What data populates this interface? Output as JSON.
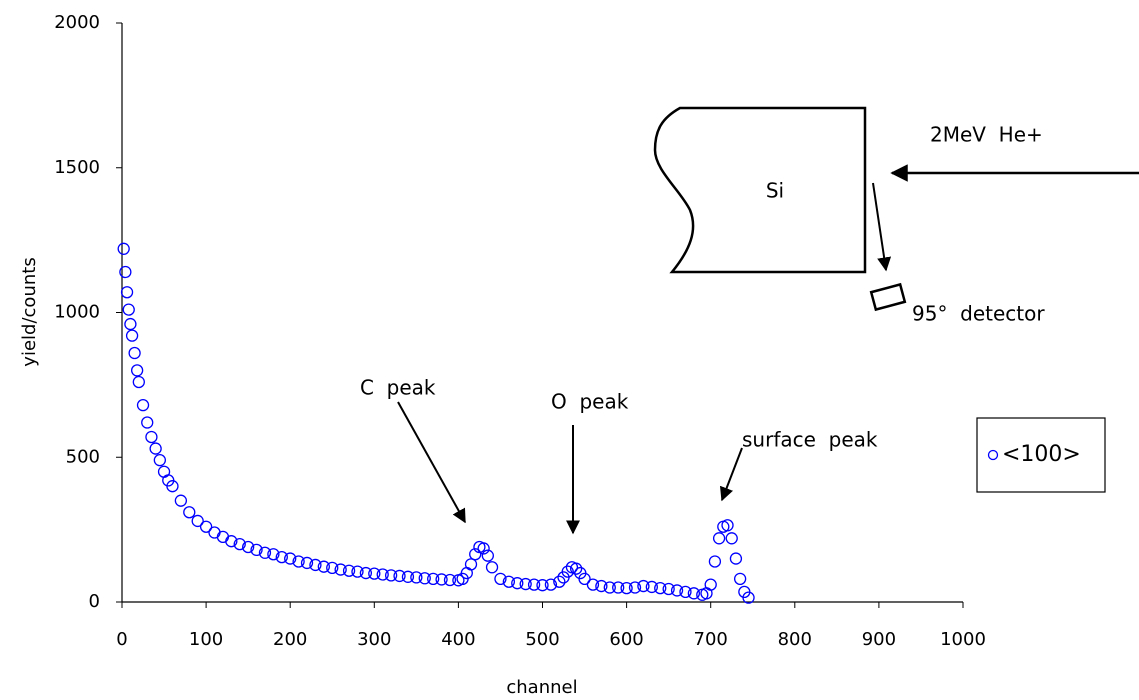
{
  "chart_data": {
    "type": "scatter",
    "x_label": "channel",
    "y_label": "yield/counts",
    "xlim": [
      0,
      1000
    ],
    "xticks": [
      0,
      100,
      200,
      300,
      400,
      500,
      600,
      700,
      800,
      900,
      1000
    ],
    "ylim": [
      0,
      2000
    ],
    "yticks": [
      0,
      500,
      1000,
      1500,
      2000
    ],
    "grid": false,
    "legend": "right",
    "annotations": [
      "C  peak",
      "O  peak",
      "surface  peak",
      "2MeV  He+",
      "Si",
      "95°  detector"
    ],
    "series": [
      {
        "name": "<100>",
        "color": "#0000ff",
        "x": [
          2,
          4,
          6,
          8,
          10,
          12,
          15,
          18,
          20,
          25,
          30,
          35,
          40,
          45,
          50,
          55,
          60,
          70,
          80,
          90,
          100,
          110,
          120,
          130,
          140,
          150,
          160,
          170,
          180,
          190,
          200,
          210,
          220,
          230,
          240,
          250,
          260,
          270,
          280,
          290,
          300,
          310,
          320,
          330,
          340,
          350,
          360,
          370,
          380,
          390,
          400,
          405,
          410,
          415,
          420,
          425,
          430,
          435,
          440,
          450,
          460,
          470,
          480,
          490,
          500,
          510,
          520,
          525,
          530,
          535,
          540,
          545,
          550,
          560,
          570,
          580,
          590,
          600,
          610,
          620,
          630,
          640,
          650,
          660,
          670,
          680,
          690,
          695,
          700,
          705,
          710,
          715,
          720,
          725,
          730,
          735,
          740,
          745
        ],
        "values": [
          1220,
          1140,
          1070,
          1010,
          960,
          920,
          860,
          800,
          760,
          680,
          620,
          570,
          530,
          490,
          450,
          420,
          400,
          350,
          310,
          280,
          260,
          240,
          225,
          210,
          200,
          190,
          180,
          170,
          165,
          155,
          150,
          140,
          135,
          128,
          122,
          118,
          112,
          108,
          105,
          100,
          98,
          95,
          92,
          90,
          87,
          85,
          82,
          80,
          78,
          76,
          75,
          80,
          100,
          130,
          165,
          190,
          185,
          160,
          120,
          80,
          70,
          65,
          62,
          60,
          58,
          60,
          70,
          85,
          105,
          120,
          115,
          100,
          80,
          60,
          55,
          50,
          50,
          48,
          50,
          55,
          52,
          48,
          45,
          40,
          35,
          30,
          25,
          30,
          60,
          140,
          220,
          260,
          265,
          220,
          150,
          80,
          35,
          15
        ]
      }
    ]
  }
}
